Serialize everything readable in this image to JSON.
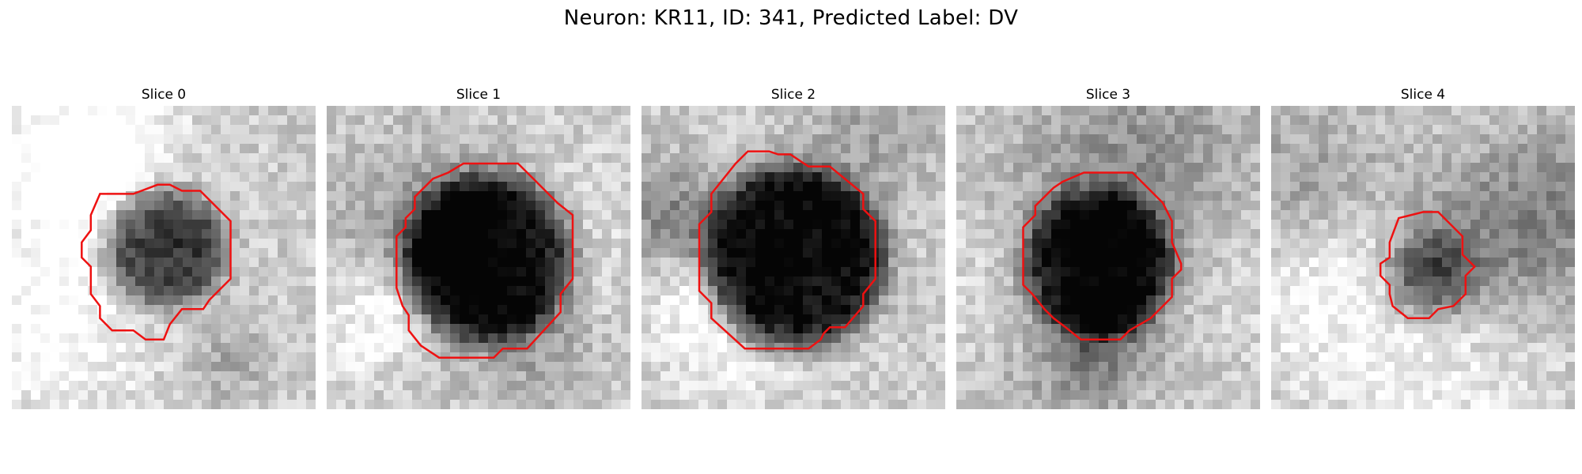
{
  "figure": {
    "title": "Neuron: KR11, ID: 341, Predicted Label: DV"
  },
  "panels": [
    {
      "title": "Slice 0",
      "seed": 11,
      "blob_center": [
        0.5,
        0.47
      ],
      "blob_radius": 0.38,
      "blob_darkness": 0.62,
      "contour": [
        [
          0.29,
          0.29
        ],
        [
          0.4,
          0.29
        ],
        [
          0.48,
          0.26
        ],
        [
          0.52,
          0.26
        ],
        [
          0.56,
          0.28
        ],
        [
          0.62,
          0.28
        ],
        [
          0.72,
          0.38
        ],
        [
          0.72,
          0.57
        ],
        [
          0.65,
          0.64
        ],
        [
          0.63,
          0.67
        ],
        [
          0.56,
          0.67
        ],
        [
          0.52,
          0.72
        ],
        [
          0.5,
          0.77
        ],
        [
          0.44,
          0.77
        ],
        [
          0.4,
          0.74
        ],
        [
          0.33,
          0.74
        ],
        [
          0.29,
          0.7
        ],
        [
          0.29,
          0.66
        ],
        [
          0.26,
          0.62
        ],
        [
          0.26,
          0.53
        ],
        [
          0.23,
          0.5
        ],
        [
          0.23,
          0.45
        ],
        [
          0.26,
          0.41
        ],
        [
          0.26,
          0.36
        ]
      ]
    },
    {
      "title": "Slice 1",
      "seed": 23,
      "blob_center": [
        0.53,
        0.5
      ],
      "blob_radius": 0.55,
      "blob_darkness": 0.72,
      "contour": [
        [
          0.4,
          0.22
        ],
        [
          0.45,
          0.19
        ],
        [
          0.63,
          0.19
        ],
        [
          0.69,
          0.25
        ],
        [
          0.76,
          0.32
        ],
        [
          0.81,
          0.36
        ],
        [
          0.81,
          0.57
        ],
        [
          0.77,
          0.62
        ],
        [
          0.77,
          0.68
        ],
        [
          0.66,
          0.8
        ],
        [
          0.58,
          0.8
        ],
        [
          0.55,
          0.83
        ],
        [
          0.37,
          0.83
        ],
        [
          0.31,
          0.79
        ],
        [
          0.27,
          0.74
        ],
        [
          0.27,
          0.69
        ],
        [
          0.25,
          0.66
        ],
        [
          0.23,
          0.6
        ],
        [
          0.23,
          0.43
        ],
        [
          0.26,
          0.4
        ],
        [
          0.26,
          0.37
        ],
        [
          0.29,
          0.34
        ],
        [
          0.29,
          0.3
        ],
        [
          0.35,
          0.24
        ]
      ]
    },
    {
      "title": "Slice 2",
      "seed": 37,
      "blob_center": [
        0.5,
        0.5
      ],
      "blob_radius": 0.6,
      "blob_darkness": 0.8,
      "contour": [
        [
          0.31,
          0.19
        ],
        [
          0.35,
          0.15
        ],
        [
          0.42,
          0.15
        ],
        [
          0.45,
          0.16
        ],
        [
          0.49,
          0.16
        ],
        [
          0.55,
          0.2
        ],
        [
          0.62,
          0.2
        ],
        [
          0.73,
          0.29
        ],
        [
          0.73,
          0.34
        ],
        [
          0.77,
          0.38
        ],
        [
          0.77,
          0.57
        ],
        [
          0.73,
          0.62
        ],
        [
          0.73,
          0.66
        ],
        [
          0.67,
          0.73
        ],
        [
          0.62,
          0.73
        ],
        [
          0.6,
          0.75
        ],
        [
          0.59,
          0.77
        ],
        [
          0.55,
          0.8
        ],
        [
          0.34,
          0.8
        ],
        [
          0.23,
          0.7
        ],
        [
          0.23,
          0.65
        ],
        [
          0.19,
          0.61
        ],
        [
          0.19,
          0.39
        ],
        [
          0.23,
          0.35
        ],
        [
          0.23,
          0.29
        ]
      ]
    },
    {
      "title": "Slice 3",
      "seed": 52,
      "blob_center": [
        0.47,
        0.52
      ],
      "blob_radius": 0.48,
      "blob_darkness": 0.68,
      "contour": [
        [
          0.35,
          0.25
        ],
        [
          0.42,
          0.22
        ],
        [
          0.58,
          0.22
        ],
        [
          0.68,
          0.32
        ],
        [
          0.71,
          0.38
        ],
        [
          0.71,
          0.45
        ],
        [
          0.74,
          0.52
        ],
        [
          0.74,
          0.54
        ],
        [
          0.71,
          0.57
        ],
        [
          0.71,
          0.63
        ],
        [
          0.64,
          0.7
        ],
        [
          0.57,
          0.74
        ],
        [
          0.54,
          0.77
        ],
        [
          0.41,
          0.77
        ],
        [
          0.36,
          0.73
        ],
        [
          0.32,
          0.7
        ],
        [
          0.29,
          0.67
        ],
        [
          0.25,
          0.62
        ],
        [
          0.22,
          0.59
        ],
        [
          0.22,
          0.4
        ],
        [
          0.26,
          0.36
        ],
        [
          0.26,
          0.33
        ],
        [
          0.32,
          0.27
        ]
      ]
    },
    {
      "title": "Slice 4",
      "seed": 68,
      "blob_center": [
        0.52,
        0.56
      ],
      "blob_radius": 0.26,
      "blob_darkness": 0.45,
      "contour": [
        [
          0.42,
          0.37
        ],
        [
          0.5,
          0.35
        ],
        [
          0.55,
          0.35
        ],
        [
          0.63,
          0.43
        ],
        [
          0.63,
          0.49
        ],
        [
          0.67,
          0.53
        ],
        [
          0.64,
          0.56
        ],
        [
          0.64,
          0.62
        ],
        [
          0.6,
          0.66
        ],
        [
          0.55,
          0.67
        ],
        [
          0.52,
          0.7
        ],
        [
          0.45,
          0.7
        ],
        [
          0.4,
          0.66
        ],
        [
          0.39,
          0.62
        ],
        [
          0.39,
          0.59
        ],
        [
          0.36,
          0.56
        ],
        [
          0.36,
          0.52
        ],
        [
          0.39,
          0.5
        ],
        [
          0.39,
          0.45
        ]
      ]
    }
  ],
  "colors": {
    "contour": "#ee1111",
    "background": "#ffffff"
  }
}
